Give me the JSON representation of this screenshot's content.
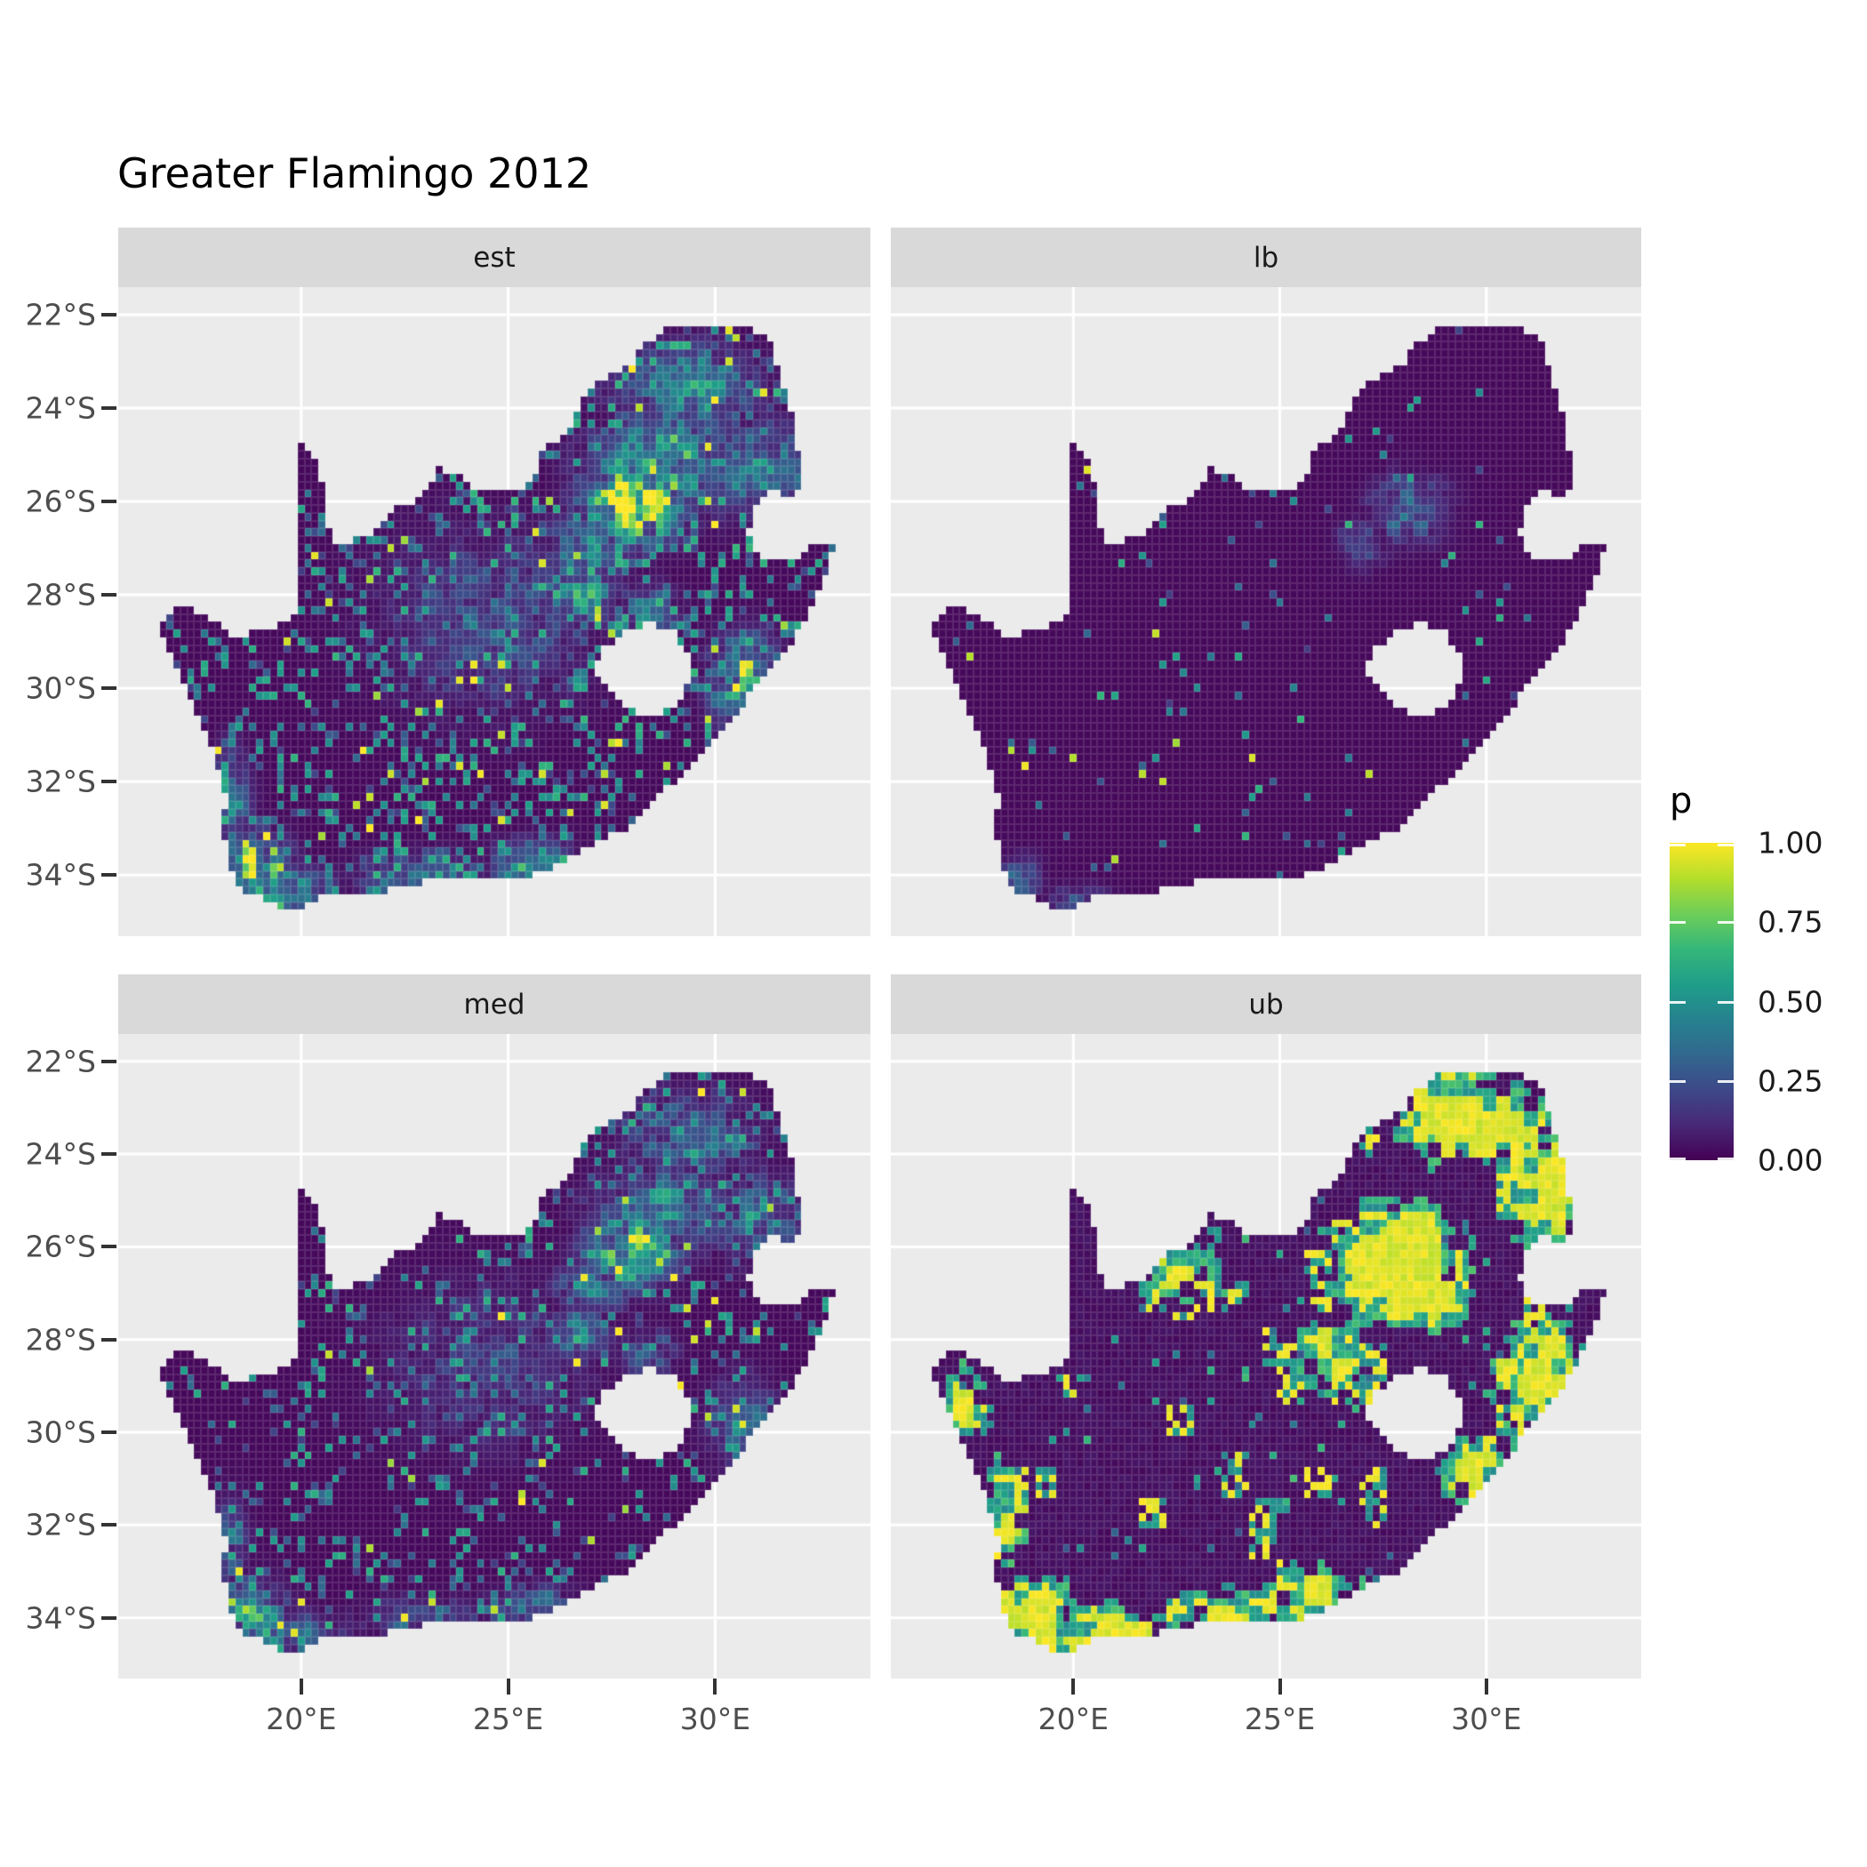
{
  "title": "Greater Flamingo 2012",
  "theme": {
    "background": "#FFFFFF",
    "panel_bg": "#EBEBEB",
    "strip_bg": "#D9D9D9",
    "strip_text": "#1A1A1A",
    "grid_color": "#FFFFFF",
    "axis_text": "#4D4D4D",
    "tick_mark": "#333333",
    "title_color": "#000000",
    "cell_border": "rgba(255,255,255,0.13)"
  },
  "chart_data": {
    "type": "heatmap",
    "subtype": "faceted_raster_map_grid_2x2",
    "title": "Greater Flamingo 2012",
    "region": "South Africa",
    "value_name": "p",
    "facets": [
      {
        "label": "est",
        "description": "Estimated reporting probability: mostly near 0 (dark purple); strong bright yellow-green hotspot around Gauteng (27-29E, 25-27S); scattered teal speckles denser in southwest Cape, east coast and northeast; occasional yellow single cells.",
        "pattern": {
          "seed": 7,
          "patchy": false,
          "noise_p": 0,
          "speckle_p": 0.17,
          "speckle_amp": 0.5,
          "sparkle_p": 0.016,
          "hotspots": [
            [
              28.0,
              -26.05,
              1.3,
              0.95,
              1.45
            ],
            [
              28.7,
              -25.2,
              1.9,
              1.1,
              0.75
            ],
            [
              27.0,
              -26.9,
              1.1,
              0.8,
              0.65
            ],
            [
              26.75,
              -27.95,
              0.85,
              0.75,
              0.7
            ],
            [
              29.3,
              -23.6,
              1.9,
              1.1,
              0.55
            ],
            [
              31.1,
              -25.4,
              1.4,
              1.2,
              0.55
            ],
            [
              30.7,
              -29.85,
              0.95,
              1.15,
              0.75
            ],
            [
              28.4,
              -28.35,
              0.8,
              0.7,
              0.45
            ],
            [
              18.85,
              -33.85,
              0.95,
              0.85,
              0.85
            ],
            [
              19.6,
              -34.4,
              1.5,
              0.6,
              0.7
            ],
            [
              18.3,
              -32.4,
              0.55,
              1.2,
              0.5
            ],
            [
              25.65,
              -33.8,
              1.3,
              0.6,
              0.55
            ],
            [
              22.9,
              -34.05,
              1.7,
              0.6,
              0.45
            ],
            [
              24.5,
              -28.5,
              3.0,
              2.2,
              0.28
            ]
          ]
        }
      },
      {
        "label": "lb",
        "description": "Lower bound: almost entirely p=0 (dark purple); only a few isolated teal/green/yellow cells near Gauteng and the southwest Cape coast.",
        "pattern": {
          "seed": 99,
          "patchy": false,
          "noise_p": 0,
          "speckle_p": 0.02,
          "speckle_amp": 0.5,
          "sparkle_p": 0.004,
          "hotspots": [
            [
              28.15,
              -26.15,
              1.05,
              0.85,
              0.4
            ],
            [
              27.0,
              -26.9,
              0.7,
              0.6,
              0.25
            ],
            [
              18.7,
              -34.05,
              0.6,
              0.55,
              0.35
            ],
            [
              20.2,
              -34.6,
              0.9,
              0.4,
              0.28
            ]
          ]
        }
      },
      {
        "label": "med",
        "description": "Median: like est but weaker; moderate Gauteng hotspot, sparse teal speckles, scattered yellow single cells along south and southwest coasts.",
        "pattern": {
          "seed": 21,
          "patchy": false,
          "noise_p": 0,
          "speckle_p": 0.12,
          "speckle_amp": 0.48,
          "sparkle_p": 0.011,
          "hotspots": [
            [
              28.0,
              -26.05,
              1.25,
              0.9,
              1.05
            ],
            [
              28.7,
              -25.2,
              1.8,
              1.05,
              0.54
            ],
            [
              27.0,
              -26.9,
              1.0,
              0.75,
              0.47
            ],
            [
              26.75,
              -27.95,
              0.8,
              0.7,
              0.5
            ],
            [
              29.3,
              -23.6,
              1.8,
              1.05,
              0.4
            ],
            [
              31.1,
              -25.4,
              1.35,
              1.15,
              0.4
            ],
            [
              30.7,
              -29.85,
              0.9,
              1.1,
              0.54
            ],
            [
              28.4,
              -28.35,
              0.75,
              0.65,
              0.32
            ],
            [
              18.85,
              -33.85,
              0.9,
              0.8,
              0.61
            ],
            [
              19.6,
              -34.4,
              1.45,
              0.55,
              0.5
            ],
            [
              18.3,
              -32.4,
              0.5,
              1.15,
              0.36
            ],
            [
              25.65,
              -33.8,
              1.25,
              0.55,
              0.4
            ],
            [
              22.9,
              -34.05,
              1.6,
              0.55,
              0.32
            ],
            [
              24.5,
              -28.5,
              2.9,
              2.1,
              0.2
            ]
          ]
        }
      },
      {
        "label": "ub",
        "description": "Upper bound: large saturated yellow patches over Gauteng, Limpopo/Mpumalanga northeast, KwaZulu-Natal east coast and southwest Cape; green patch fringes; central Karoo and Kalahari interior remain dark purple.",
        "pattern": {
          "seed": 55,
          "patchy": true,
          "noise_p": 0.3,
          "speckle_p": 0.06,
          "speckle_amp": 0.45,
          "sparkle_p": 0.0,
          "hotspots": [
            [
              27.8,
              -26.3,
              2.0,
              1.5,
              1.25
            ],
            [
              29.7,
              -23.3,
              2.4,
              1.2,
              0.95
            ],
            [
              31.4,
              -24.6,
              1.5,
              1.7,
              0.9
            ],
            [
              28.9,
              -22.6,
              1.6,
              0.8,
              0.8
            ],
            [
              31.2,
              -28.8,
              1.4,
              1.7,
              0.95
            ],
            [
              29.9,
              -30.9,
              1.4,
              1.0,
              0.8
            ],
            [
              26.3,
              -28.4,
              1.6,
              1.3,
              0.6
            ],
            [
              28.6,
              -27.2,
              1.5,
              0.9,
              0.7
            ],
            [
              19.0,
              -33.9,
              1.4,
              1.0,
              1.05
            ],
            [
              20.8,
              -34.3,
              2.0,
              0.8,
              0.9
            ],
            [
              18.4,
              -31.7,
              0.8,
              1.6,
              0.65
            ],
            [
              17.4,
              -29.6,
              0.9,
              1.4,
              0.6
            ],
            [
              24.0,
              -34.0,
              2.4,
              0.9,
              0.7
            ],
            [
              26.0,
              -33.6,
              1.8,
              1.0,
              0.65
            ],
            [
              22.5,
              -26.5,
              1.8,
              1.0,
              0.55
            ],
            [
              25.0,
              -31.5,
              1.5,
              1.5,
              0.35
            ]
          ]
        }
      }
    ],
    "x_axis": {
      "label": "",
      "tick_labels": [
        "20°E",
        "25°E",
        "30°E"
      ],
      "tick_values": [
        20,
        25,
        30
      ],
      "range_lon": [
        15.58,
        33.75
      ]
    },
    "y_axis": {
      "label": "",
      "tick_labels": [
        "22°S",
        "24°S",
        "26°S",
        "28°S",
        "30°S",
        "32°S",
        "34°S"
      ],
      "tick_values": [
        -22,
        -24,
        -26,
        -28,
        -30,
        -32,
        -34
      ],
      "range_lat": [
        -35.31,
        -21.41
      ]
    },
    "legend": {
      "title": "p",
      "tick_labels": [
        "1.00",
        "0.75",
        "0.50",
        "0.25",
        "0.00"
      ],
      "tick_values": [
        1,
        0.75,
        0.5,
        0.25,
        0
      ],
      "range": [
        0,
        1
      ],
      "position": "right"
    },
    "colormap": {
      "name": "viridis",
      "stops": [
        "#440154",
        "#482878",
        "#3e4989",
        "#31688e",
        "#26828e",
        "#1f9e89",
        "#35b779",
        "#6ece58",
        "#b5de2b",
        "#fde725"
      ]
    },
    "grid": {
      "cell_size_deg": 0.1667,
      "gridlines": "white majors at 5 deg lon / 2 deg lat, no minors"
    },
    "map_outline": [
      [
        19.99,
        -24.76
      ],
      [
        20.4,
        -25.06
      ],
      [
        20.52,
        -25.6
      ],
      [
        20.6,
        -26.2
      ],
      [
        20.7,
        -26.85
      ],
      [
        21.1,
        -26.87
      ],
      [
        21.7,
        -26.66
      ],
      [
        22.2,
        -26.2
      ],
      [
        22.6,
        -26.0
      ],
      [
        22.9,
        -25.98
      ],
      [
        23.3,
        -25.3
      ],
      [
        23.7,
        -25.4
      ],
      [
        24.2,
        -25.75
      ],
      [
        24.9,
        -25.8
      ],
      [
        25.6,
        -25.6
      ],
      [
        25.9,
        -24.75
      ],
      [
        26.4,
        -24.63
      ],
      [
        26.85,
        -23.75
      ],
      [
        27.25,
        -23.4
      ],
      [
        27.95,
        -23.05
      ],
      [
        28.35,
        -22.6
      ],
      [
        29.0,
        -22.2
      ],
      [
        29.45,
        -22.15
      ],
      [
        30.1,
        -22.3
      ],
      [
        30.85,
        -22.3
      ],
      [
        31.3,
        -22.4
      ],
      [
        31.55,
        -23.2
      ],
      [
        31.9,
        -24.2
      ],
      [
        32.02,
        -25.1
      ],
      [
        32.05,
        -25.65
      ],
      [
        31.95,
        -25.95
      ],
      [
        31.4,
        -25.73
      ],
      [
        30.97,
        -26.1
      ],
      [
        30.8,
        -26.6
      ],
      [
        30.9,
        -27.05
      ],
      [
        31.25,
        -27.3
      ],
      [
        31.97,
        -27.31
      ],
      [
        32.35,
        -26.86
      ],
      [
        32.89,
        -26.85
      ],
      [
        32.65,
        -27.55
      ],
      [
        32.35,
        -28.3
      ],
      [
        31.95,
        -28.9
      ],
      [
        31.3,
        -29.55
      ],
      [
        30.65,
        -30.35
      ],
      [
        30.0,
        -31.0
      ],
      [
        29.35,
        -31.7
      ],
      [
        28.55,
        -32.4
      ],
      [
        27.85,
        -33.0
      ],
      [
        27.05,
        -33.35
      ],
      [
        26.3,
        -33.75
      ],
      [
        25.65,
        -34.0
      ],
      [
        24.85,
        -34.15
      ],
      [
        23.95,
        -34.1
      ],
      [
        23.35,
        -34.1
      ],
      [
        22.55,
        -34.2
      ],
      [
        21.7,
        -34.4
      ],
      [
        20.9,
        -34.4
      ],
      [
        20.4,
        -34.45
      ],
      [
        19.95,
        -34.8
      ],
      [
        19.3,
        -34.62
      ],
      [
        18.85,
        -34.4
      ],
      [
        18.45,
        -34.3
      ],
      [
        18.32,
        -33.95
      ],
      [
        18.25,
        -33.4
      ],
      [
        17.95,
        -32.9
      ],
      [
        18.2,
        -32.55
      ],
      [
        18.1,
        -31.9
      ],
      [
        17.6,
        -30.8
      ],
      [
        17.2,
        -30.0
      ],
      [
        16.9,
        -29.3
      ],
      [
        16.48,
        -28.6
      ],
      [
        17.1,
        -28.25
      ],
      [
        17.7,
        -28.45
      ],
      [
        18.4,
        -28.9
      ],
      [
        19.3,
        -28.7
      ],
      [
        19.99,
        -28.4
      ]
    ],
    "lesotho_hole": [
      [
        27.02,
        -29.6
      ],
      [
        27.35,
        -29.1
      ],
      [
        27.75,
        -28.85
      ],
      [
        28.35,
        -28.6
      ],
      [
        28.95,
        -28.75
      ],
      [
        29.35,
        -29.25
      ],
      [
        29.45,
        -29.75
      ],
      [
        29.2,
        -30.15
      ],
      [
        28.7,
        -30.6
      ],
      [
        28.12,
        -30.55
      ],
      [
        27.7,
        -30.3
      ],
      [
        27.38,
        -30.02
      ]
    ]
  }
}
